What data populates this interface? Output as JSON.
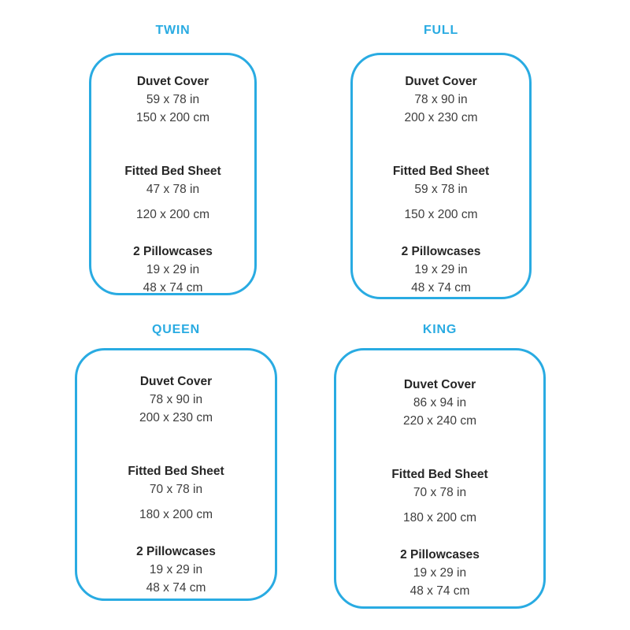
{
  "theme": {
    "accent_color": "#29abe2",
    "title_color": "#262626",
    "value_color": "#3d3d3d",
    "background_color": "#ffffff"
  },
  "sizes": [
    {
      "label": "TWIN",
      "items": [
        {
          "name": "Duvet Cover",
          "inches": "59 x 78 in",
          "centimeters": "150 x 200 cm"
        },
        {
          "name": "Fitted Bed Sheet",
          "inches": "47 x 78 in",
          "centimeters": "120 x 200 cm"
        },
        {
          "name": "2 Pillowcases",
          "inches": "19 x 29 in",
          "centimeters": "48 x 74 cm"
        }
      ]
    },
    {
      "label": "FULL",
      "items": [
        {
          "name": "Duvet Cover",
          "inches": "78 x 90 in",
          "centimeters": "200 x 230 cm"
        },
        {
          "name": "Fitted Bed Sheet",
          "inches": "59 x 78 in",
          "centimeters": "150 x 200 cm"
        },
        {
          "name": "2 Pillowcases",
          "inches": "19 x 29 in",
          "centimeters": "48 x 74 cm"
        }
      ]
    },
    {
      "label": "QUEEN",
      "items": [
        {
          "name": "Duvet Cover",
          "inches": "78 x 90 in",
          "centimeters": "200 x 230 cm"
        },
        {
          "name": "Fitted Bed Sheet",
          "inches": "70 x 78 in",
          "centimeters": "180 x 200 cm"
        },
        {
          "name": "2 Pillowcases",
          "inches": "19 x 29 in",
          "centimeters": "48 x 74 cm"
        }
      ]
    },
    {
      "label": "KING",
      "items": [
        {
          "name": "Duvet Cover",
          "inches": "86 x 94 in",
          "centimeters": "220 x 240 cm"
        },
        {
          "name": "Fitted Bed Sheet",
          "inches": "70 x 78 in",
          "centimeters": "180 x 200 cm"
        },
        {
          "name": "2 Pillowcases",
          "inches": "19 x 29 in",
          "centimeters": "48 x 74 cm"
        }
      ]
    }
  ]
}
